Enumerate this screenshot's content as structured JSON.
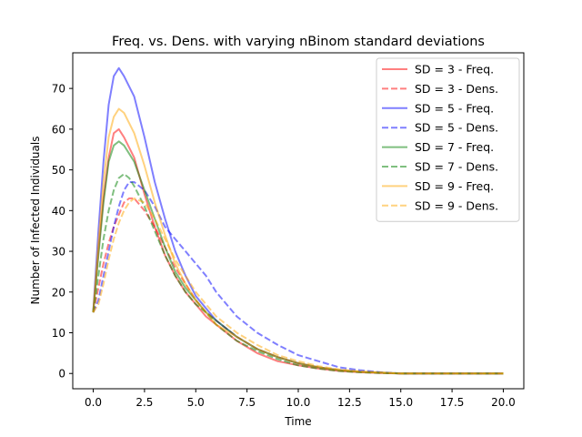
{
  "chart_data": {
    "type": "line",
    "title": "Freq. vs. Dens. with varying nBinom standard deviations",
    "xlabel": "Time",
    "ylabel": "Number of Infected Individuals",
    "xlim": [
      -1,
      21
    ],
    "ylim": [
      -3.75,
      78.75
    ],
    "xticks": [
      0.0,
      2.5,
      5.0,
      7.5,
      10.0,
      12.5,
      15.0,
      17.5,
      20.0
    ],
    "xtick_labels": [
      "0.0",
      "2.5",
      "5.0",
      "7.5",
      "10.0",
      "12.5",
      "15.0",
      "17.5",
      "20.0"
    ],
    "yticks": [
      0,
      10,
      20,
      30,
      40,
      50,
      60,
      70
    ],
    "ytick_labels": [
      "0",
      "10",
      "20",
      "30",
      "40",
      "50",
      "60",
      "70"
    ],
    "grid": false,
    "legend_position": "top-right",
    "series": [
      {
        "name": "SD = 3 - Freq.",
        "color": "#ff0000",
        "style": "solid",
        "x": [
          0,
          0.25,
          0.5,
          0.75,
          1,
          1.25,
          1.5,
          2,
          2.5,
          3,
          3.5,
          4,
          4.5,
          5,
          5.5,
          6,
          7,
          8,
          9,
          10,
          11,
          12,
          13,
          14,
          15,
          17.5,
          20
        ],
        "y": [
          15,
          30,
          43,
          53,
          59,
          60,
          58,
          53,
          44,
          36,
          29,
          24,
          20,
          17,
          14,
          12,
          8,
          5,
          3,
          2,
          1.2,
          0.6,
          0.3,
          0.1,
          0,
          0,
          0
        ]
      },
      {
        "name": "SD = 3 - Dens.",
        "color": "#ff0000",
        "style": "dashed",
        "x": [
          0,
          0.25,
          0.5,
          0.75,
          1,
          1.25,
          1.5,
          1.75,
          2,
          2.5,
          3,
          3.5,
          4,
          4.5,
          5,
          5.5,
          6,
          7,
          8,
          9,
          10,
          11,
          12,
          13,
          14,
          15,
          17.5,
          20
        ],
        "y": [
          15,
          21,
          27,
          32,
          36,
          39,
          42,
          43,
          43,
          40,
          36,
          31,
          26,
          22,
          18,
          15,
          13,
          9,
          6,
          4,
          2.5,
          1.5,
          0.8,
          0.4,
          0.2,
          0,
          0,
          0
        ]
      },
      {
        "name": "SD = 5 - Freq.",
        "color": "#0000ff",
        "style": "solid",
        "x": [
          0,
          0.25,
          0.5,
          0.75,
          1,
          1.25,
          1.5,
          2,
          2.5,
          3,
          3.5,
          4,
          4.5,
          5,
          5.5,
          6,
          7,
          8,
          9,
          10,
          11,
          12,
          13,
          14,
          15,
          17.5,
          20
        ],
        "y": [
          15,
          35,
          52,
          66,
          73,
          75,
          73,
          68,
          58,
          47,
          38,
          30,
          24,
          19,
          16,
          13,
          9,
          6,
          4,
          2.5,
          1.5,
          0.8,
          0.4,
          0.2,
          0,
          0,
          0
        ]
      },
      {
        "name": "SD = 5  - Dens.",
        "color": "#0000ff",
        "style": "dashed",
        "x": [
          0,
          0.25,
          0.5,
          0.75,
          1,
          1.25,
          1.5,
          1.75,
          2,
          2.5,
          3,
          3.5,
          4,
          4.5,
          5,
          5.5,
          6,
          7,
          8,
          9,
          10,
          11,
          12,
          13,
          14,
          15,
          17.5,
          20
        ],
        "y": [
          15,
          18,
          24,
          30,
          36,
          41,
          45,
          47,
          47,
          45,
          41,
          36,
          33,
          30,
          27,
          24,
          20,
          14,
          10,
          7,
          4.5,
          3,
          1.5,
          0.8,
          0.3,
          0,
          0,
          0
        ]
      },
      {
        "name": "SD = 7 - Freq.",
        "color": "#008000",
        "style": "solid",
        "x": [
          0,
          0.25,
          0.5,
          0.75,
          1,
          1.25,
          1.5,
          2,
          2.5,
          3,
          3.5,
          4,
          4.5,
          5,
          5.5,
          6,
          7,
          8,
          9,
          10,
          11,
          12,
          13,
          14,
          15,
          17.5,
          20
        ],
        "y": [
          15,
          29,
          42,
          52,
          56,
          57,
          56,
          52,
          45,
          38,
          31,
          25,
          21,
          18,
          15,
          13,
          9,
          6,
          4,
          2.5,
          1.5,
          0.8,
          0.4,
          0.2,
          0,
          0,
          0
        ]
      },
      {
        "name": "SD = 7 - Dens.",
        "color": "#008000",
        "style": "dashed",
        "x": [
          0,
          0.25,
          0.5,
          0.75,
          1,
          1.25,
          1.5,
          1.75,
          2,
          2.5,
          3,
          3.5,
          4,
          4.5,
          5,
          5.5,
          6,
          7,
          8,
          9,
          10,
          11,
          12,
          13,
          14,
          15,
          17.5,
          20
        ],
        "y": [
          15,
          24,
          33,
          40,
          45,
          48,
          49,
          48,
          46,
          41,
          35,
          29,
          24,
          20,
          17,
          15,
          12,
          8,
          5.5,
          3.5,
          2,
          1.2,
          0.6,
          0.3,
          0.1,
          0,
          0,
          0
        ]
      },
      {
        "name": "SD = 9 - Freq.",
        "color": "#ffa500",
        "style": "solid",
        "x": [
          0,
          0.25,
          0.5,
          0.75,
          1,
          1.25,
          1.5,
          2,
          2.5,
          3,
          3.5,
          4,
          4.5,
          5,
          5.5,
          6,
          7,
          8,
          9,
          10,
          11,
          12,
          13,
          14,
          15,
          17.5,
          20
        ],
        "y": [
          15,
          32,
          47,
          58,
          63,
          65,
          64,
          59,
          51,
          42,
          34,
          27,
          22,
          18,
          15,
          12,
          9,
          6,
          4,
          2.5,
          1.5,
          0.8,
          0.4,
          0.2,
          0,
          0,
          0
        ]
      },
      {
        "name": "SD = 9 - Dens.",
        "color": "#ffa500",
        "style": "dashed",
        "x": [
          0,
          0.25,
          0.5,
          0.75,
          1,
          1.25,
          1.5,
          1.75,
          2,
          2.5,
          3,
          3.5,
          4,
          4.5,
          5,
          5.5,
          6,
          7,
          8,
          9,
          10,
          11,
          12,
          13,
          14,
          15,
          17.5,
          20
        ],
        "y": [
          15,
          17,
          22,
          28,
          33,
          37,
          40,
          42,
          43,
          42,
          38,
          33,
          28,
          24,
          20,
          17,
          14,
          10,
          7,
          4.5,
          3,
          1.8,
          1,
          0.5,
          0.2,
          0,
          0,
          0
        ]
      }
    ]
  }
}
